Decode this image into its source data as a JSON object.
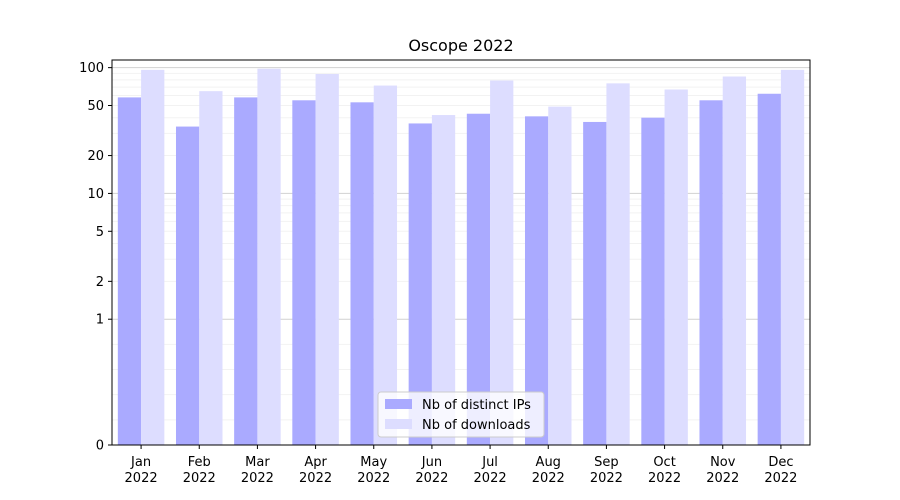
{
  "chart_data": {
    "type": "bar",
    "title": "Oscope 2022",
    "xlabel": "",
    "ylabel": "",
    "yscale": "symlog",
    "ylim": [
      0,
      115
    ],
    "yticks": [
      0,
      1,
      2,
      5,
      10,
      20,
      50,
      100
    ],
    "grid": true,
    "legend_position": "bottom-center",
    "categories": [
      [
        "Jan",
        "2022"
      ],
      [
        "Feb",
        "2022"
      ],
      [
        "Mar",
        "2022"
      ],
      [
        "Apr",
        "2022"
      ],
      [
        "May",
        "2022"
      ],
      [
        "Jun",
        "2022"
      ],
      [
        "Jul",
        "2022"
      ],
      [
        "Aug",
        "2022"
      ],
      [
        "Sep",
        "2022"
      ],
      [
        "Oct",
        "2022"
      ],
      [
        "Nov",
        "2022"
      ],
      [
        "Dec",
        "2022"
      ]
    ],
    "series": [
      {
        "name": "Nb of distinct IPs",
        "color": "#aaaaff",
        "values": [
          58,
          34,
          58,
          55,
          53,
          36,
          43,
          41,
          37,
          40,
          55,
          62
        ]
      },
      {
        "name": "Nb of downloads",
        "color": "#ddddff",
        "values": [
          96,
          65,
          98,
          89,
          72,
          42,
          79,
          49,
          75,
          67,
          85,
          96
        ]
      }
    ]
  }
}
